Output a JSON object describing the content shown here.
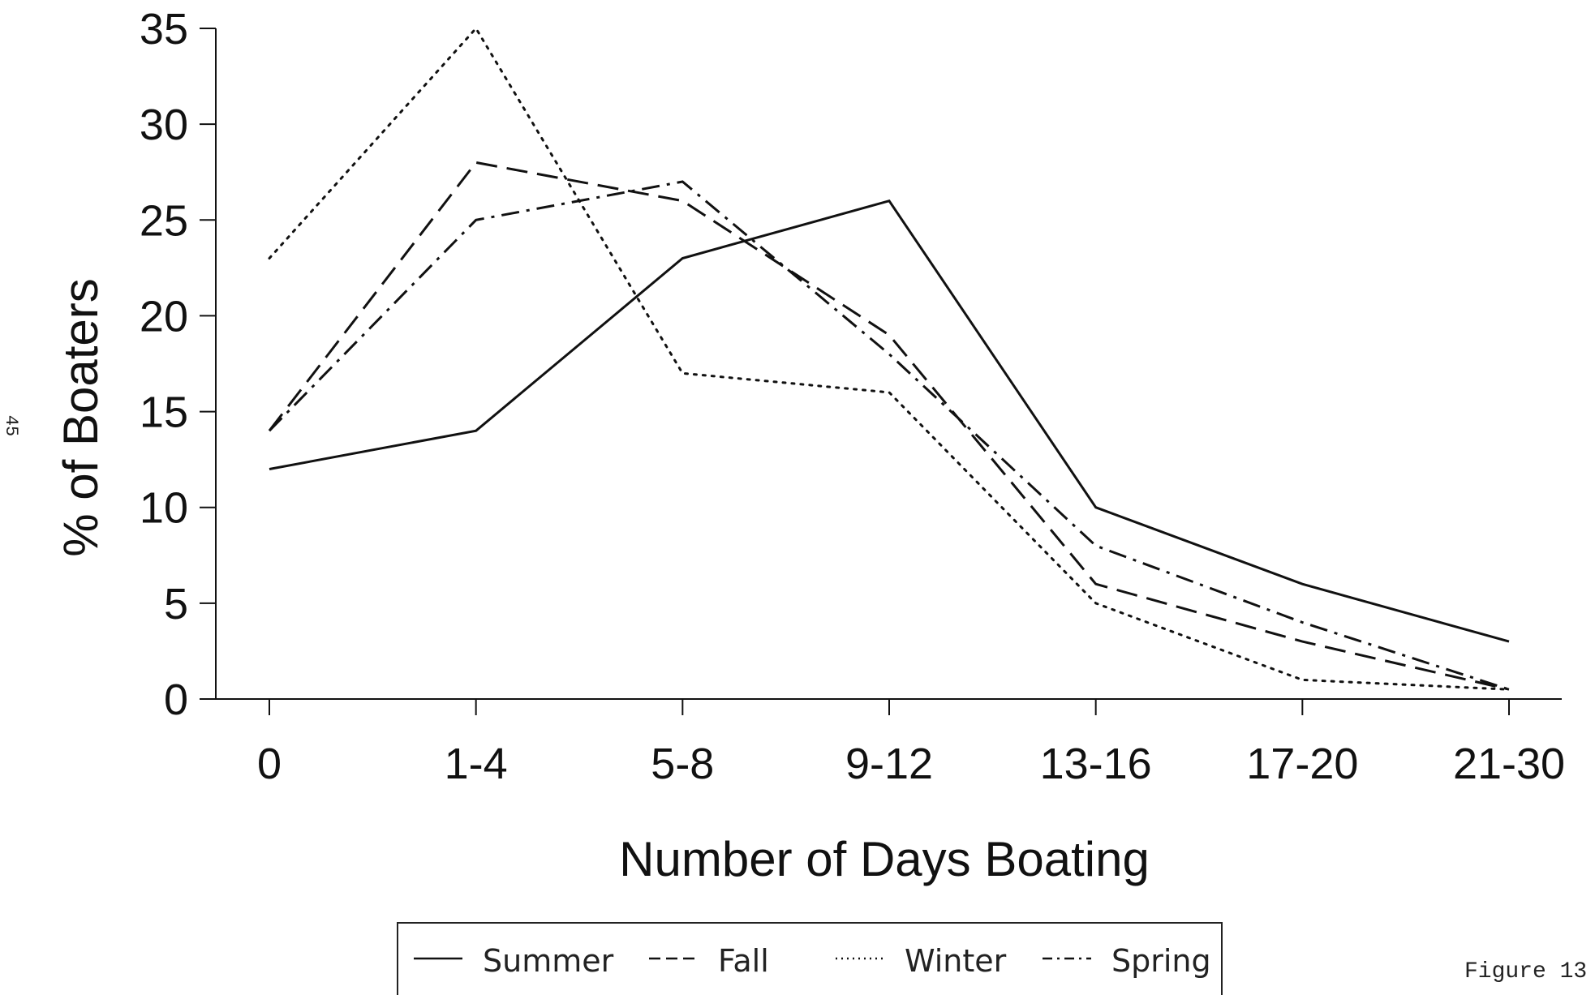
{
  "chart_data": {
    "type": "line",
    "categories": [
      "0",
      "1-4",
      "5-8",
      "9-12",
      "13-16",
      "17-20",
      "21-30"
    ],
    "series": [
      {
        "name": "Summer",
        "values": [
          12,
          14,
          23,
          26,
          10,
          6,
          3
        ],
        "dash": "solid"
      },
      {
        "name": "Fall",
        "values": [
          14,
          28,
          26,
          19,
          6,
          3,
          0.5
        ],
        "dash": "dashed"
      },
      {
        "name": "Winter",
        "values": [
          23,
          35,
          17,
          16,
          5,
          1,
          0.5
        ],
        "dash": "dotted"
      },
      {
        "name": "Spring",
        "values": [
          14,
          25,
          27,
          18,
          8,
          4,
          0.5
        ],
        "dash": "dashdot"
      }
    ],
    "title": "",
    "xlabel": "Number of Days Boating",
    "ylabel": "% of Boaters",
    "ylim": [
      0,
      35
    ],
    "yticks": [
      0,
      5,
      10,
      15,
      20,
      25,
      30,
      35
    ],
    "grid": false,
    "legend": "bottom-center"
  },
  "page": {
    "side_number": "45",
    "figure_caption": "Figure 13"
  }
}
